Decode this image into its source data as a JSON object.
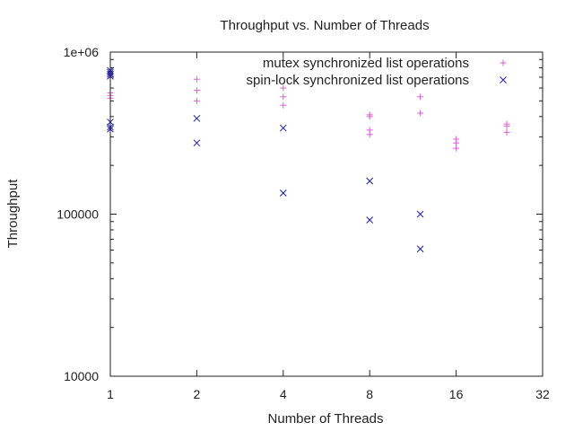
{
  "chart_data": {
    "type": "scatter",
    "title": "Throughput vs. Number of Threads",
    "xlabel": "Number of Threads",
    "ylabel": "Throughput",
    "x_scale": "log2",
    "y_scale": "log10",
    "xlim": [
      1,
      32
    ],
    "ylim": [
      10000,
      1000000
    ],
    "x_ticks": [
      1,
      2,
      4,
      8,
      16,
      32
    ],
    "x_tick_labels": [
      "1",
      "2",
      "4",
      "8",
      "16",
      "32"
    ],
    "y_ticks": [
      10000,
      100000,
      1000000
    ],
    "y_tick_labels": [
      "10000",
      "100000",
      "1e+06"
    ],
    "grid": false,
    "legend_position": "top-right",
    "series": [
      {
        "name": "mutex synchronized list operations",
        "marker": "plus",
        "color": "#e15ccf",
        "points": [
          [
            1,
            760000
          ],
          [
            1,
            740000
          ],
          [
            1,
            720000
          ],
          [
            1,
            700000
          ],
          [
            1,
            560000
          ],
          [
            1,
            540000
          ],
          [
            1,
            520000
          ],
          [
            2,
            680000
          ],
          [
            2,
            580000
          ],
          [
            2,
            500000
          ],
          [
            4,
            600000
          ],
          [
            4,
            530000
          ],
          [
            4,
            470000
          ],
          [
            8,
            410000
          ],
          [
            8,
            400000
          ],
          [
            8,
            330000
          ],
          [
            8,
            310000
          ],
          [
            12,
            530000
          ],
          [
            12,
            420000
          ],
          [
            16,
            290000
          ],
          [
            16,
            275000
          ],
          [
            16,
            255000
          ],
          [
            24,
            360000
          ],
          [
            24,
            350000
          ],
          [
            24,
            320000
          ]
        ]
      },
      {
        "name": "spin-lock synchronized list operations",
        "marker": "cross",
        "color": "#1a1ab8",
        "points": [
          [
            1,
            770000
          ],
          [
            1,
            750000
          ],
          [
            1,
            730000
          ],
          [
            1,
            710000
          ],
          [
            1,
            370000
          ],
          [
            1,
            345000
          ],
          [
            1,
            335000
          ],
          [
            2,
            390000
          ],
          [
            2,
            275000
          ],
          [
            4,
            340000
          ],
          [
            4,
            135000
          ],
          [
            8,
            160000
          ],
          [
            8,
            92000
          ],
          [
            12,
            100000
          ],
          [
            12,
            61000
          ]
        ]
      }
    ]
  }
}
